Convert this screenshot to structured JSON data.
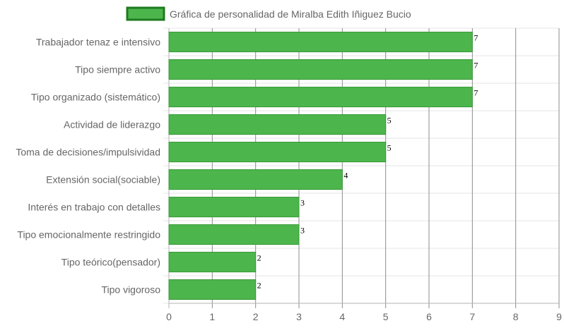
{
  "chart_data": {
    "type": "bar",
    "orientation": "horizontal",
    "legend": {
      "label": "Gráfica de personalidad de Miralba Edith Iñiguez Bucio",
      "position": "top-center"
    },
    "categories": [
      "Trabajador tenaz e intensivo",
      "Tipo siempre activo",
      "Tipo organizado (sistemático)",
      "Actividad de liderazgo",
      "Toma de decisiones/impulsividad",
      "Extensión social(sociable)",
      "Interés en trabajo con detalles",
      "Tipo emocionalmente restringido",
      "Tipo teórico(pensador)",
      "Tipo vigoroso"
    ],
    "values": [
      7,
      7,
      7,
      5,
      5,
      4,
      3,
      3,
      2,
      2
    ],
    "xlim": [
      0,
      9
    ],
    "xticks": [
      "0",
      "1",
      "2",
      "3",
      "4",
      "5",
      "6",
      "7",
      "8",
      "9"
    ],
    "grid": true,
    "colors": {
      "bar_fill": "#4cb54c",
      "bar_border": "#3a9a3a",
      "legend_border": "#1f7a1f",
      "grid": "#e6e6e6",
      "grid_dark": "#8c8c8c",
      "axis": "#b3b3b3"
    }
  }
}
